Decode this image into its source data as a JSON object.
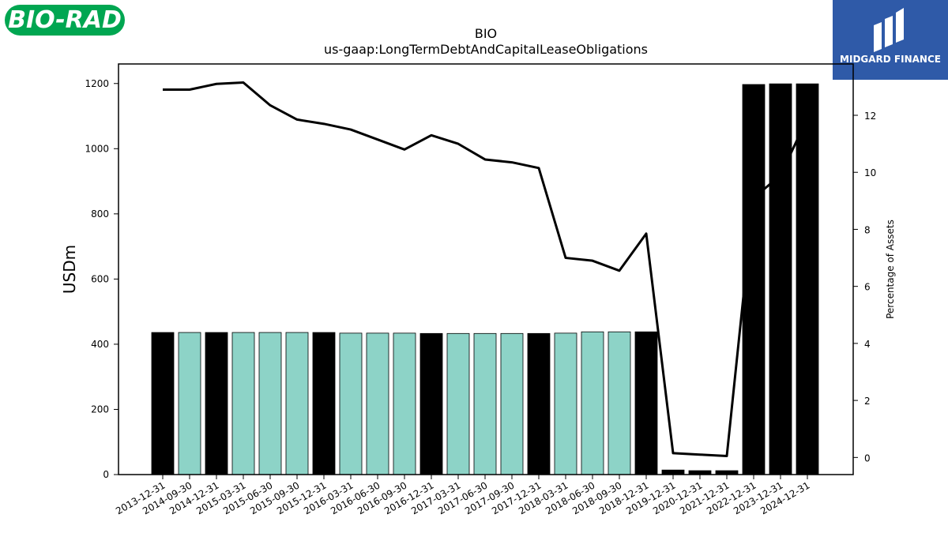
{
  "logos": {
    "left_text": "BIO-RAD",
    "right_text": "MIDGARD FINANCE",
    "left_color": "#00a651",
    "right_color": "#2f5aa8"
  },
  "chart_data": {
    "type": "bar",
    "title": "BIO",
    "subtitle": "us-gaap:LongTermDebtAndCapitalLeaseObligations",
    "ylabel": "USDm",
    "y2label": "Percentage of Assets",
    "ylim": [
      0,
      1260
    ],
    "y2lim": [
      -0.6,
      13.8
    ],
    "yticks": [
      0,
      200,
      400,
      600,
      800,
      1000,
      1200
    ],
    "y2ticks": [
      0,
      2,
      4,
      6,
      8,
      10,
      12
    ],
    "categories": [
      "2013-12-31",
      "2014-09-30",
      "2014-12-31",
      "2015-03-31",
      "2015-06-30",
      "2015-09-30",
      "2015-12-31",
      "2016-03-31",
      "2016-06-30",
      "2016-09-30",
      "2016-12-31",
      "2017-03-31",
      "2017-06-30",
      "2017-09-30",
      "2017-12-31",
      "2018-03-31",
      "2018-06-30",
      "2018-09-30",
      "2018-12-31",
      "2019-12-31",
      "2020-12-31",
      "2021-12-31",
      "2022-12-31",
      "2023-12-31",
      "2024-12-31"
    ],
    "series": [
      {
        "kind": "bar",
        "values": [
          436,
          436,
          436,
          436,
          436,
          436,
          436,
          434,
          434,
          434,
          433,
          433,
          433,
          433,
          433,
          434,
          438,
          438,
          438,
          14,
          12,
          12,
          1197,
          1199,
          1199
        ],
        "colors": [
          "#000000",
          "#8dd3c7",
          "#000000",
          "#8dd3c7",
          "#8dd3c7",
          "#8dd3c7",
          "#000000",
          "#8dd3c7",
          "#8dd3c7",
          "#8dd3c7",
          "#000000",
          "#8dd3c7",
          "#8dd3c7",
          "#8dd3c7",
          "#000000",
          "#8dd3c7",
          "#8dd3c7",
          "#8dd3c7",
          "#000000",
          "#000000",
          "#000000",
          "#000000",
          "#000000",
          "#000000",
          "#000000"
        ]
      },
      {
        "kind": "line",
        "axis": "right",
        "color": "#000000",
        "values": [
          12.9,
          12.9,
          13.1,
          13.15,
          12.35,
          11.85,
          11.7,
          11.5,
          11.15,
          10.8,
          11.3,
          11.0,
          10.45,
          10.35,
          10.15,
          7.0,
          6.9,
          6.55,
          7.85,
          0.15,
          0.1,
          0.05,
          9.1,
          9.9,
          11.9
        ]
      }
    ],
    "grid": false,
    "legend": "none"
  }
}
